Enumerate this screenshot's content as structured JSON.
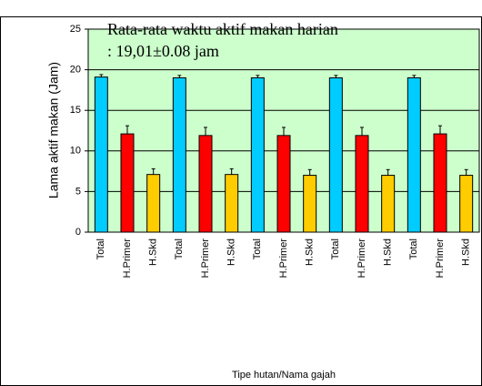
{
  "chart_data": {
    "type": "bar",
    "annotations": [
      "Rata-rata waktu aktif makan harian",
      ": 19,01±0.08 jam"
    ],
    "xlabel": "Tipe hutan/Nama gajah",
    "ylabel": "Lama aktif makan (Jam)",
    "categories": [
      "Total",
      "H.Primer",
      "H.Skd",
      "Total",
      "H.Primer",
      "H.Skd",
      "Total",
      "H.Primer",
      "H.Skd",
      "Total",
      "H.Primer",
      "H.Skd",
      "Total",
      "H.Primer",
      "H.Skd"
    ],
    "values": [
      19.1,
      12.1,
      7.1,
      19.0,
      11.9,
      7.1,
      19.0,
      11.9,
      7.0,
      19.0,
      11.9,
      7.0,
      19.0,
      12.1,
      7.0
    ],
    "errors": [
      0.3,
      1.0,
      0.7,
      0.3,
      1.0,
      0.7,
      0.3,
      1.0,
      0.7,
      0.3,
      1.0,
      0.7,
      0.3,
      1.0,
      0.7
    ],
    "colors": [
      "#00ccff",
      "#ff0000",
      "#ffcc00",
      "#00ccff",
      "#ff0000",
      "#ffcc00",
      "#00ccff",
      "#ff0000",
      "#ffcc00",
      "#00ccff",
      "#ff0000",
      "#ffcc00",
      "#00ccff",
      "#ff0000",
      "#ffcc00"
    ],
    "ylim": [
      0,
      25
    ],
    "yticks": [
      0,
      5,
      10,
      15,
      20,
      25
    ],
    "grid": true,
    "plot_background": "#ccffcc"
  }
}
